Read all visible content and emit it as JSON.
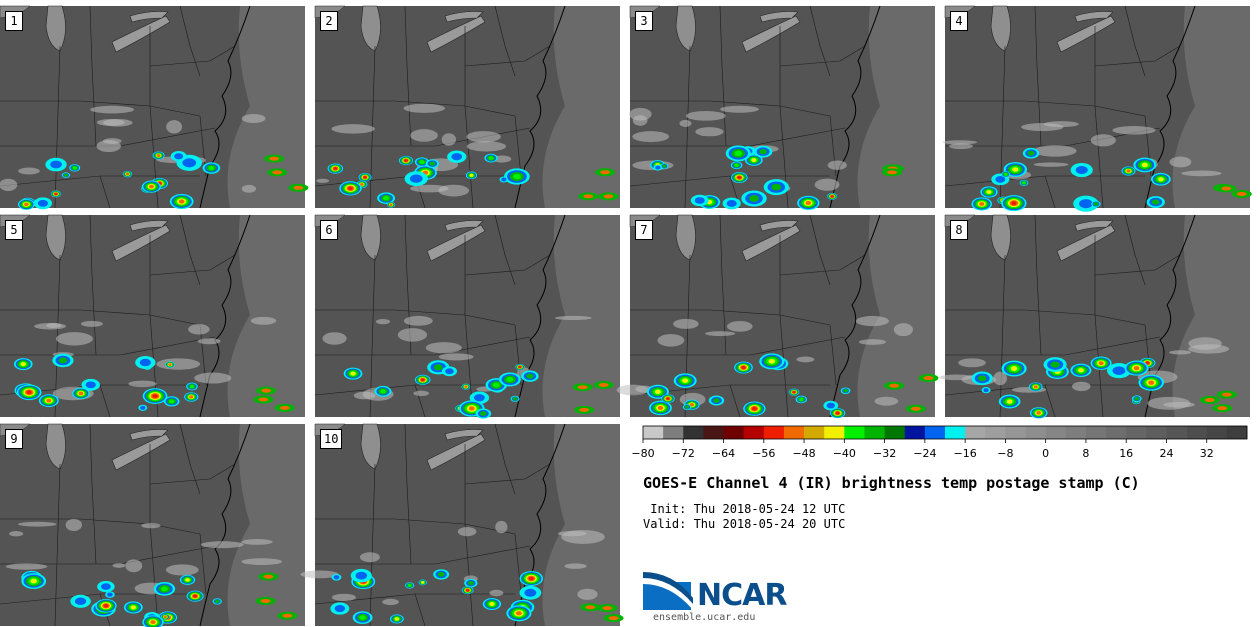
{
  "panels": [
    {
      "label": "1"
    },
    {
      "label": "2"
    },
    {
      "label": "3"
    },
    {
      "label": "4"
    },
    {
      "label": "5"
    },
    {
      "label": "6"
    },
    {
      "label": "7"
    },
    {
      "label": "8"
    },
    {
      "label": "9"
    },
    {
      "label": "10"
    }
  ],
  "colorbar": {
    "ticks": [
      "−80",
      "−72",
      "−64",
      "−56",
      "−48",
      "−40",
      "−32",
      "−24",
      "−16",
      "−8",
      "0",
      "8",
      "16",
      "24",
      "32"
    ],
    "tick_values": [
      -80,
      -72,
      -64,
      -56,
      -48,
      -40,
      -32,
      -24,
      -16,
      -8,
      0,
      8,
      16,
      24,
      32
    ],
    "range": [
      -80,
      40
    ],
    "step": 4,
    "colors": [
      "#c8c8c8",
      "#7e7e7e",
      "#323232",
      "#4a1515",
      "#6e0000",
      "#b40000",
      "#f01e00",
      "#f06a00",
      "#d2aa00",
      "#f0f000",
      "#00f000",
      "#00b400",
      "#007800",
      "#0014a0",
      "#0064f0",
      "#00f0f0",
      "#a6a6a6",
      "#9e9e9e",
      "#969696",
      "#8e8e8e",
      "#868686",
      "#7e7e7e",
      "#767676",
      "#6e6e6e",
      "#666666",
      "#5e5e5e",
      "#565656",
      "#4e4e4e",
      "#464646",
      "#3e3e3e"
    ]
  },
  "title": "GOES-E Channel 4 (IR) brightness temp postage stamp (C)",
  "init": " Init: Thu 2018-05-24 12 UTC",
  "valid": "Valid: Thu 2018-05-24 20 UTC",
  "logo": {
    "name": "NCAR",
    "url": "ensemble.ucar.edu"
  }
}
